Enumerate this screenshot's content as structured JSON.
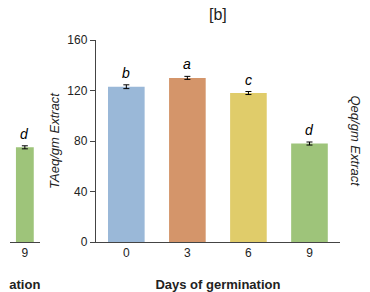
{
  "chart_data": [
    {
      "type": "bar",
      "xlabel": "ation",
      "categories": [
        9
      ],
      "values": [
        75
      ],
      "errors": [
        1.2
      ],
      "color": "#9ec47a",
      "annotations": [
        "d"
      ],
      "ylim": [
        0,
        160
      ],
      "tick_labels": "x",
      "grid": false
    },
    {
      "type": "bar",
      "title": "[b]",
      "xlabel": "Days of germination",
      "ylabel": "TAeq/gm Extract",
      "y2label": "Qeq/gm Extract",
      "categories": [
        0,
        3,
        6,
        9
      ],
      "values": [
        123,
        130,
        118,
        78
      ],
      "errors": [
        1.5,
        1.2,
        1.2,
        1.2
      ],
      "colors": [
        "#9ab8d8",
        "#d4956a",
        "#e0cc6a",
        "#9ec47a"
      ],
      "annotations": [
        "b",
        "a",
        "c",
        "d"
      ],
      "ylim": [
        0,
        160
      ],
      "yticks": [
        0,
        40,
        80,
        120,
        160
      ],
      "grid": false
    }
  ]
}
